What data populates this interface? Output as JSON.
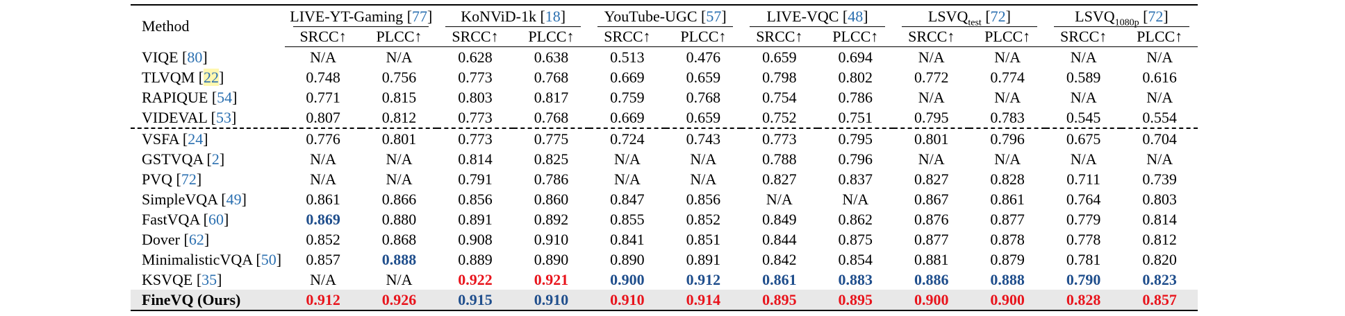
{
  "columns": {
    "method_header": "Method",
    "datasets": [
      {
        "name": "LIVE-YT-Gaming",
        "sub": "",
        "ref": "77"
      },
      {
        "name": "KoNViD-1k",
        "sub": "",
        "ref": "18"
      },
      {
        "name": "YouTube-UGC",
        "sub": "",
        "ref": "57"
      },
      {
        "name": "LIVE-VQC",
        "sub": "",
        "ref": "48"
      },
      {
        "name": "LSVQ",
        "sub": "test",
        "ref": "72"
      },
      {
        "name": "LSVQ",
        "sub": "1080p",
        "ref": "72"
      }
    ],
    "metrics": [
      "SRCC↑",
      "PLCC↑"
    ]
  },
  "rows": [
    {
      "method": "VIQE",
      "ref": "80",
      "values": [
        "N/A",
        "N/A",
        "0.628",
        "0.638",
        "0.513",
        "0.476",
        "0.659",
        "0.694",
        "N/A",
        "N/A",
        "N/A",
        "N/A"
      ],
      "styles": [
        "",
        "",
        "",
        "",
        "",
        "",
        "",
        "",
        "",
        "",
        "",
        ""
      ]
    },
    {
      "method": "TLVQM",
      "ref": "22",
      "ref_highlight": true,
      "values": [
        "0.748",
        "0.756",
        "0.773",
        "0.768",
        "0.669",
        "0.659",
        "0.798",
        "0.802",
        "0.772",
        "0.774",
        "0.589",
        "0.616"
      ],
      "styles": [
        "",
        "",
        "",
        "",
        "",
        "",
        "",
        "",
        "",
        "",
        "",
        ""
      ]
    },
    {
      "method": "RAPIQUE",
      "ref": "54",
      "values": [
        "0.771",
        "0.815",
        "0.803",
        "0.817",
        "0.759",
        "0.768",
        "0.754",
        "0.786",
        "N/A",
        "N/A",
        "N/A",
        "N/A"
      ],
      "styles": [
        "",
        "",
        "",
        "",
        "",
        "",
        "",
        "",
        "",
        "",
        "",
        ""
      ]
    },
    {
      "method": "VIDEVAL",
      "ref": "53",
      "values": [
        "0.807",
        "0.812",
        "0.773",
        "0.768",
        "0.669",
        "0.659",
        "0.752",
        "0.751",
        "0.795",
        "0.783",
        "0.545",
        "0.554"
      ],
      "styles": [
        "",
        "",
        "",
        "",
        "",
        "",
        "",
        "",
        "",
        "",
        "",
        ""
      ],
      "dashed_after": true
    },
    {
      "method": "VSFA",
      "ref": "24",
      "values": [
        "0.776",
        "0.801",
        "0.773",
        "0.775",
        "0.724",
        "0.743",
        "0.773",
        "0.795",
        "0.801",
        "0.796",
        "0.675",
        "0.704"
      ],
      "styles": [
        "",
        "",
        "",
        "",
        "",
        "",
        "",
        "",
        "",
        "",
        "",
        ""
      ]
    },
    {
      "method": "GSTVQA",
      "ref": "2",
      "values": [
        "N/A",
        "N/A",
        "0.814",
        "0.825",
        "N/A",
        "N/A",
        "0.788",
        "0.796",
        "N/A",
        "N/A",
        "N/A",
        "N/A"
      ],
      "styles": [
        "",
        "",
        "",
        "",
        "",
        "",
        "",
        "",
        "",
        "",
        "",
        ""
      ]
    },
    {
      "method": "PVQ",
      "ref": "72",
      "values": [
        "N/A",
        "N/A",
        "0.791",
        "0.786",
        "N/A",
        "N/A",
        "0.827",
        "0.837",
        "0.827",
        "0.828",
        "0.711",
        "0.739"
      ],
      "styles": [
        "",
        "",
        "",
        "",
        "",
        "",
        "",
        "",
        "",
        "",
        "",
        ""
      ]
    },
    {
      "method": "SimpleVQA",
      "ref": "49",
      "values": [
        "0.861",
        "0.866",
        "0.856",
        "0.860",
        "0.847",
        "0.856",
        "N/A",
        "N/A",
        "0.867",
        "0.861",
        "0.764",
        "0.803"
      ],
      "styles": [
        "",
        "",
        "",
        "",
        "",
        "",
        "",
        "",
        "",
        "",
        "",
        ""
      ]
    },
    {
      "method": "FastVQA",
      "ref": "60",
      "values": [
        "0.869",
        "0.880",
        "0.891",
        "0.892",
        "0.855",
        "0.852",
        "0.849",
        "0.862",
        "0.876",
        "0.877",
        "0.779",
        "0.814"
      ],
      "styles": [
        "second",
        "",
        "",
        "",
        "",
        "",
        "",
        "",
        "",
        "",
        "",
        ""
      ]
    },
    {
      "method": "Dover",
      "ref": "62",
      "values": [
        "0.852",
        "0.868",
        "0.908",
        "0.910",
        "0.841",
        "0.851",
        "0.844",
        "0.875",
        "0.877",
        "0.878",
        "0.778",
        "0.812"
      ],
      "styles": [
        "",
        "",
        "",
        "",
        "",
        "",
        "",
        "",
        "",
        "",
        "",
        ""
      ]
    },
    {
      "method": "MinimalisticVQA",
      "ref": "50",
      "values": [
        "0.857",
        "0.888",
        "0.889",
        "0.890",
        "0.890",
        "0.891",
        "0.842",
        "0.854",
        "0.881",
        "0.879",
        "0.781",
        "0.820"
      ],
      "styles": [
        "",
        "second",
        "",
        "",
        "",
        "",
        "",
        "",
        "",
        "",
        "",
        ""
      ]
    },
    {
      "method": "KSVQE",
      "ref": "35",
      "values": [
        "N/A",
        "N/A",
        "0.922",
        "0.921",
        "0.900",
        "0.912",
        "0.861",
        "0.883",
        "0.886",
        "0.888",
        "0.790",
        "0.823"
      ],
      "styles": [
        "",
        "",
        "best",
        "best",
        "second",
        "second",
        "second",
        "second",
        "second",
        "second",
        "second",
        "second"
      ]
    },
    {
      "method": "FineVQ (Ours)",
      "ref": "",
      "ours": true,
      "values": [
        "0.912",
        "0.926",
        "0.915",
        "0.910",
        "0.910",
        "0.914",
        "0.895",
        "0.895",
        "0.900",
        "0.900",
        "0.828",
        "0.857"
      ],
      "styles": [
        "best",
        "best",
        "second",
        "second",
        "best",
        "best",
        "best",
        "best",
        "best",
        "best",
        "best",
        "best"
      ]
    }
  ]
}
